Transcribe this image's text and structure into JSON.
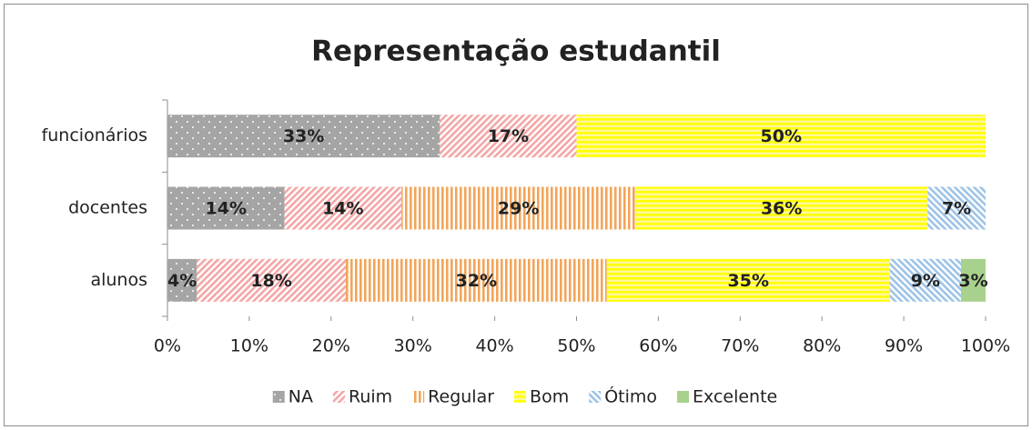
{
  "chart_data": {
    "type": "stacked_barh",
    "title": "Representação estudantil",
    "categories": [
      "alunos",
      "docentes",
      "funcionários"
    ],
    "series": [
      {
        "name": "NA",
        "color": "#a5a5a5",
        "pattern": "dots",
        "values": [
          3.6,
          14.3,
          33.3
        ],
        "value_labels": [
          "4%",
          "14%",
          "33%"
        ]
      },
      {
        "name": "Ruim",
        "color": "#f4a6a6",
        "pattern": "diagonal",
        "values": [
          18.2,
          14.3,
          16.7
        ],
        "value_labels": [
          "18%",
          "14%",
          "17%"
        ]
      },
      {
        "name": "Regular",
        "color": "#f2a55a",
        "pattern": "vertical",
        "values": [
          31.9,
          28.6,
          null
        ],
        "value_labels": [
          "32%",
          "29%",
          null
        ]
      },
      {
        "name": "Bom",
        "color": "#ffff00",
        "pattern": "horizontal",
        "values": [
          34.6,
          35.7,
          50
        ],
        "value_labels": [
          "35%",
          "36%",
          "50%"
        ]
      },
      {
        "name": "Ótimo",
        "color": "#9dc3e6",
        "pattern": "antidiagonal",
        "values": [
          8.7,
          7.1,
          null
        ],
        "value_labels": [
          "9%",
          "7%",
          null
        ]
      },
      {
        "name": "Excelente",
        "color": "#a9d18e",
        "pattern": "solid",
        "values": [
          3.0,
          null,
          null
        ],
        "value_labels": [
          "3%",
          null,
          null
        ]
      }
    ],
    "xlim": [
      0,
      100
    ],
    "xticks": [
      {
        "value": 0,
        "label": "0%"
      },
      {
        "value": 10,
        "label": "10%"
      },
      {
        "value": 20,
        "label": "20%"
      },
      {
        "value": 30,
        "label": "30%"
      },
      {
        "value": 40,
        "label": "40%"
      },
      {
        "value": 50,
        "label": "50%"
      },
      {
        "value": 60,
        "label": "60%"
      },
      {
        "value": 70,
        "label": "70%"
      },
      {
        "value": 80,
        "label": "80%"
      },
      {
        "value": 90,
        "label": "90%"
      },
      {
        "value": 100,
        "label": "100%"
      }
    ],
    "grid": false,
    "legend": "bottom"
  }
}
